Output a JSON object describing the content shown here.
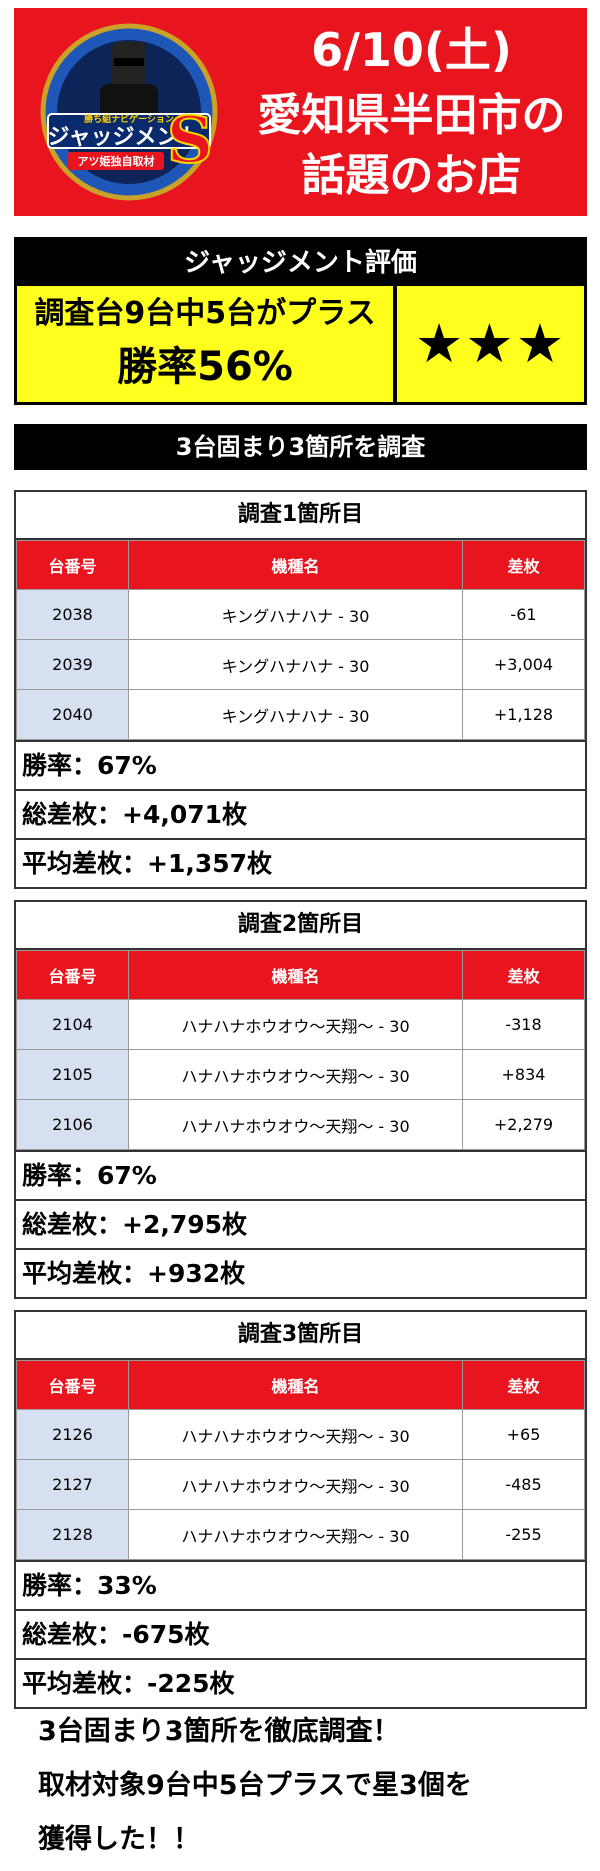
{
  "header": {
    "date": "6/10(土)",
    "line1": "愛知県半田市の",
    "line2": "話題のお店",
    "logo": {
      "name": "ジャッジメントS",
      "tagline": "勝ち組ナビゲーション",
      "badge": "アツ姫独自取材",
      "colors": {
        "ring": "#1f57b8",
        "text": "#ffffff",
        "s_red": "#e8141e"
      }
    }
  },
  "evaluation": {
    "title": "ジャッジメント評価",
    "summary": "調査台9台中5台がプラス",
    "win_rate": "勝率56%",
    "stars": "★★★"
  },
  "section_title": "3台固まり3箇所を調査",
  "surveys": [
    {
      "title": "調査1箇所目",
      "headers": {
        "num": "台番号",
        "model": "機種名",
        "diff": "差枚"
      },
      "rows": [
        {
          "num": "2038",
          "model": "キングハナハナ - 30",
          "diff": "-61"
        },
        {
          "num": "2039",
          "model": "キングハナハナ - 30",
          "diff": "+3,004"
        },
        {
          "num": "2040",
          "model": "キングハナハナ - 30",
          "diff": "+1,128"
        }
      ],
      "win_rate": "勝率：67%",
      "total": "総差枚：+4,071枚",
      "average": "平均差枚：+1,357枚"
    },
    {
      "title": "調査2箇所目",
      "headers": {
        "num": "台番号",
        "model": "機種名",
        "diff": "差枚"
      },
      "rows": [
        {
          "num": "2104",
          "model": "ハナハナホウオウ～天翔～ - 30",
          "diff": "-318"
        },
        {
          "num": "2105",
          "model": "ハナハナホウオウ～天翔～ - 30",
          "diff": "+834"
        },
        {
          "num": "2106",
          "model": "ハナハナホウオウ～天翔～ - 30",
          "diff": "+2,279"
        }
      ],
      "win_rate": "勝率：67%",
      "total": "総差枚：+2,795枚",
      "average": "平均差枚：+932枚"
    },
    {
      "title": "調査3箇所目",
      "headers": {
        "num": "台番号",
        "model": "機種名",
        "diff": "差枚"
      },
      "rows": [
        {
          "num": "2126",
          "model": "ハナハナホウオウ～天翔～ - 30",
          "diff": "+65"
        },
        {
          "num": "2127",
          "model": "ハナハナホウオウ～天翔～ - 30",
          "diff": "-485"
        },
        {
          "num": "2128",
          "model": "ハナハナホウオウ～天翔～ - 30",
          "diff": "-255"
        }
      ],
      "win_rate": "勝率：33%",
      "total": "総差枚：-675枚",
      "average": "平均差枚：-225枚"
    }
  ],
  "footer": {
    "line1": "3台固まり3箇所を徹底調査！",
    "line2": "取材対象9台中5台プラスで星3個を",
    "line3": "獲得した！！"
  },
  "colors": {
    "banner_red": "#e8141e",
    "header_red": "#e8141e",
    "eval_yellow": "#ffff1e",
    "num_cell_blue": "#d7e0f0",
    "bar_black": "#000000"
  }
}
